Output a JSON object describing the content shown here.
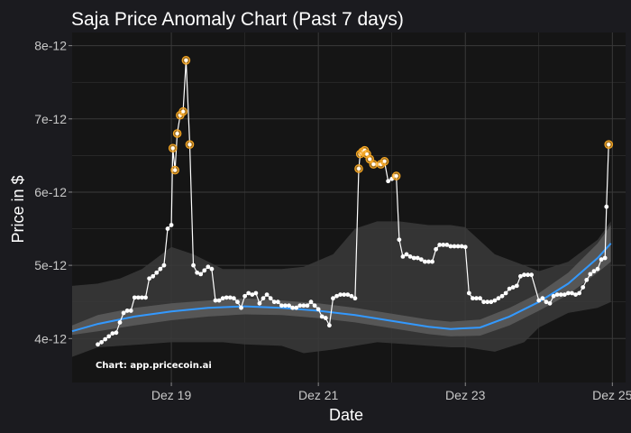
{
  "chart_data": {
    "type": "line",
    "title": "Saja Price Anomaly Chart (Past 7 days)",
    "xlabel": "Date",
    "ylabel": "Price in $",
    "caption": "Chart: app.pricecoin.ai",
    "x_ticks": [
      {
        "label": "Dez 19",
        "t": 1
      },
      {
        "label": "Dez 21",
        "t": 3
      },
      {
        "label": "Dez 23",
        "t": 5
      },
      {
        "label": "Dez 25",
        "t": 7
      }
    ],
    "y_ticks": [
      {
        "label": "4e-12",
        "v": 4
      },
      {
        "label": "5e-12",
        "v": 5
      },
      {
        "label": "6e-12",
        "v": 6
      },
      {
        "label": "7e-12",
        "v": 7
      },
      {
        "label": "8e-12",
        "v": 8
      }
    ],
    "xlim": [
      -0.35,
      7.18
    ],
    "ylim": [
      3.4,
      8.18
    ],
    "y_unit_multiplier": 1e-12,
    "price": [
      [
        0.0,
        3.92
      ],
      [
        0.05,
        3.95
      ],
      [
        0.1,
        3.99
      ],
      [
        0.15,
        4.03
      ],
      [
        0.2,
        4.07
      ],
      [
        0.25,
        4.08
      ],
      [
        0.3,
        4.22
      ],
      [
        0.35,
        4.35
      ],
      [
        0.4,
        4.38
      ],
      [
        0.45,
        4.38
      ],
      [
        0.5,
        4.56
      ],
      [
        0.55,
        4.56
      ],
      [
        0.6,
        4.56
      ],
      [
        0.65,
        4.56
      ],
      [
        0.7,
        4.82
      ],
      [
        0.75,
        4.85
      ],
      [
        0.8,
        4.9
      ],
      [
        0.85,
        4.95
      ],
      [
        0.9,
        5.0
      ],
      [
        0.95,
        5.5
      ],
      [
        1.0,
        5.55
      ],
      [
        1.02,
        6.6
      ],
      [
        1.05,
        6.3
      ],
      [
        1.08,
        6.8
      ],
      [
        1.12,
        7.05
      ],
      [
        1.16,
        7.1
      ],
      [
        1.2,
        7.8
      ],
      [
        1.25,
        6.65
      ],
      [
        1.3,
        5.0
      ],
      [
        1.35,
        4.9
      ],
      [
        1.4,
        4.88
      ],
      [
        1.45,
        4.93
      ],
      [
        1.5,
        4.98
      ],
      [
        1.55,
        4.95
      ],
      [
        1.6,
        4.52
      ],
      [
        1.65,
        4.52
      ],
      [
        1.7,
        4.55
      ],
      [
        1.75,
        4.56
      ],
      [
        1.8,
        4.56
      ],
      [
        1.85,
        4.55
      ],
      [
        1.9,
        4.5
      ],
      [
        1.95,
        4.42
      ],
      [
        2.0,
        4.58
      ],
      [
        2.05,
        4.62
      ],
      [
        2.1,
        4.6
      ],
      [
        2.15,
        4.62
      ],
      [
        2.2,
        4.48
      ],
      [
        2.25,
        4.55
      ],
      [
        2.3,
        4.6
      ],
      [
        2.35,
        4.55
      ],
      [
        2.4,
        4.5
      ],
      [
        2.45,
        4.5
      ],
      [
        2.5,
        4.45
      ],
      [
        2.55,
        4.45
      ],
      [
        2.6,
        4.45
      ],
      [
        2.65,
        4.42
      ],
      [
        2.7,
        4.42
      ],
      [
        2.75,
        4.45
      ],
      [
        2.8,
        4.45
      ],
      [
        2.85,
        4.45
      ],
      [
        2.9,
        4.5
      ],
      [
        2.95,
        4.45
      ],
      [
        3.0,
        4.4
      ],
      [
        3.05,
        4.3
      ],
      [
        3.1,
        4.28
      ],
      [
        3.15,
        4.18
      ],
      [
        3.2,
        4.55
      ],
      [
        3.25,
        4.58
      ],
      [
        3.3,
        4.6
      ],
      [
        3.35,
        4.6
      ],
      [
        3.4,
        4.6
      ],
      [
        3.45,
        4.58
      ],
      [
        3.5,
        4.55
      ],
      [
        3.55,
        6.32
      ],
      [
        3.57,
        6.52
      ],
      [
        3.6,
        6.55
      ],
      [
        3.63,
        6.57
      ],
      [
        3.66,
        6.52
      ],
      [
        3.7,
        6.45
      ],
      [
        3.75,
        6.38
      ],
      [
        3.8,
        6.38
      ],
      [
        3.85,
        6.38
      ],
      [
        3.9,
        6.42
      ],
      [
        3.95,
        6.15
      ],
      [
        4.0,
        6.18
      ],
      [
        4.03,
        6.22
      ],
      [
        4.06,
        6.22
      ],
      [
        4.1,
        5.35
      ],
      [
        4.15,
        5.12
      ],
      [
        4.2,
        5.15
      ],
      [
        4.25,
        5.12
      ],
      [
        4.3,
        5.1
      ],
      [
        4.35,
        5.1
      ],
      [
        4.4,
        5.08
      ],
      [
        4.45,
        5.05
      ],
      [
        4.5,
        5.05
      ],
      [
        4.55,
        5.05
      ],
      [
        4.6,
        5.22
      ],
      [
        4.65,
        5.28
      ],
      [
        4.7,
        5.28
      ],
      [
        4.75,
        5.28
      ],
      [
        4.8,
        5.26
      ],
      [
        4.85,
        5.26
      ],
      [
        4.9,
        5.26
      ],
      [
        4.95,
        5.26
      ],
      [
        5.0,
        5.25
      ],
      [
        5.05,
        4.62
      ],
      [
        5.1,
        4.55
      ],
      [
        5.15,
        4.55
      ],
      [
        5.2,
        4.55
      ],
      [
        5.25,
        4.5
      ],
      [
        5.3,
        4.5
      ],
      [
        5.35,
        4.5
      ],
      [
        5.4,
        4.52
      ],
      [
        5.45,
        4.55
      ],
      [
        5.5,
        4.58
      ],
      [
        5.55,
        4.62
      ],
      [
        5.6,
        4.68
      ],
      [
        5.65,
        4.7
      ],
      [
        5.7,
        4.72
      ],
      [
        5.75,
        4.85
      ],
      [
        5.8,
        4.87
      ],
      [
        5.85,
        4.87
      ],
      [
        5.9,
        4.87
      ],
      [
        6.0,
        4.52
      ],
      [
        6.05,
        4.55
      ],
      [
        6.1,
        4.5
      ],
      [
        6.15,
        4.48
      ],
      [
        6.2,
        4.58
      ],
      [
        6.25,
        4.6
      ],
      [
        6.3,
        4.6
      ],
      [
        6.35,
        4.6
      ],
      [
        6.4,
        4.62
      ],
      [
        6.45,
        4.62
      ],
      [
        6.5,
        4.6
      ],
      [
        6.55,
        4.62
      ],
      [
        6.6,
        4.7
      ],
      [
        6.65,
        4.8
      ],
      [
        6.7,
        4.88
      ],
      [
        6.75,
        4.92
      ],
      [
        6.8,
        4.95
      ],
      [
        6.85,
        5.08
      ],
      [
        6.9,
        5.1
      ],
      [
        6.92,
        5.8
      ],
      [
        6.95,
        6.65
      ]
    ],
    "anomalies": [
      [
        1.02,
        6.6
      ],
      [
        1.05,
        6.3
      ],
      [
        1.08,
        6.8
      ],
      [
        1.12,
        7.05
      ],
      [
        1.16,
        7.1
      ],
      [
        1.2,
        7.8
      ],
      [
        1.25,
        6.65
      ],
      [
        3.55,
        6.32
      ],
      [
        3.57,
        6.52
      ],
      [
        3.6,
        6.55
      ],
      [
        3.63,
        6.57
      ],
      [
        3.66,
        6.52
      ],
      [
        3.7,
        6.45
      ],
      [
        3.75,
        6.38
      ],
      [
        3.85,
        6.38
      ],
      [
        3.9,
        6.42
      ],
      [
        4.06,
        6.22
      ],
      [
        6.95,
        6.65
      ]
    ],
    "trend": [
      [
        -0.35,
        4.1
      ],
      [
        0.0,
        4.2
      ],
      [
        0.5,
        4.3
      ],
      [
        1.0,
        4.37
      ],
      [
        1.5,
        4.42
      ],
      [
        2.0,
        4.44
      ],
      [
        2.5,
        4.42
      ],
      [
        3.0,
        4.38
      ],
      [
        3.5,
        4.32
      ],
      [
        4.0,
        4.24
      ],
      [
        4.5,
        4.16
      ],
      [
        4.8,
        4.13
      ],
      [
        5.2,
        4.15
      ],
      [
        5.6,
        4.3
      ],
      [
        6.0,
        4.5
      ],
      [
        6.4,
        4.75
      ],
      [
        6.8,
        5.1
      ],
      [
        6.98,
        5.3
      ]
    ],
    "inner_band": [
      [
        -0.35,
        4.05,
        4.18
      ],
      [
        0.0,
        4.1,
        4.32
      ],
      [
        0.5,
        4.18,
        4.42
      ],
      [
        1.0,
        4.25,
        4.48
      ],
      [
        1.5,
        4.3,
        4.52
      ],
      [
        2.0,
        4.33,
        4.55
      ],
      [
        2.5,
        4.32,
        4.52
      ],
      [
        3.0,
        4.28,
        4.48
      ],
      [
        3.5,
        4.22,
        4.42
      ],
      [
        4.0,
        4.14,
        4.34
      ],
      [
        4.5,
        4.06,
        4.26
      ],
      [
        4.8,
        4.03,
        4.23
      ],
      [
        5.2,
        4.04,
        4.26
      ],
      [
        5.6,
        4.18,
        4.42
      ],
      [
        6.0,
        4.38,
        4.62
      ],
      [
        6.4,
        4.6,
        4.9
      ],
      [
        6.8,
        4.9,
        5.3
      ],
      [
        6.98,
        5.05,
        5.55
      ]
    ],
    "outer_band": [
      [
        -0.35,
        3.75,
        4.72
      ],
      [
        0.0,
        3.88,
        4.75
      ],
      [
        0.3,
        3.9,
        4.82
      ],
      [
        0.6,
        3.92,
        4.95
      ],
      [
        1.0,
        3.95,
        5.25
      ],
      [
        1.3,
        3.95,
        5.15
      ],
      [
        1.7,
        3.95,
        4.95
      ],
      [
        2.0,
        3.92,
        4.95
      ],
      [
        2.5,
        3.9,
        4.95
      ],
      [
        2.8,
        3.8,
        4.98
      ],
      [
        3.2,
        3.85,
        5.15
      ],
      [
        3.5,
        3.9,
        5.5
      ],
      [
        3.8,
        3.95,
        5.6
      ],
      [
        4.1,
        3.93,
        5.6
      ],
      [
        4.5,
        3.9,
        5.55
      ],
      [
        4.8,
        3.88,
        5.55
      ],
      [
        5.0,
        3.88,
        5.52
      ],
      [
        5.4,
        3.82,
        5.15
      ],
      [
        5.8,
        3.95,
        5.0
      ],
      [
        6.0,
        4.15,
        4.92
      ],
      [
        6.4,
        4.35,
        5.05
      ],
      [
        6.8,
        4.42,
        5.35
      ],
      [
        6.98,
        4.5,
        5.6
      ]
    ],
    "colors": {
      "panel": "#151515",
      "frame": "#1b1b1f",
      "grid": "#3a3a3a",
      "price": "#ffffff",
      "anomaly": "#f5a623",
      "trend": "#3399ff",
      "inner_band": "#5f5f5f",
      "outer_band": "#3a3a3a"
    },
    "grid": true,
    "legend": "none"
  }
}
